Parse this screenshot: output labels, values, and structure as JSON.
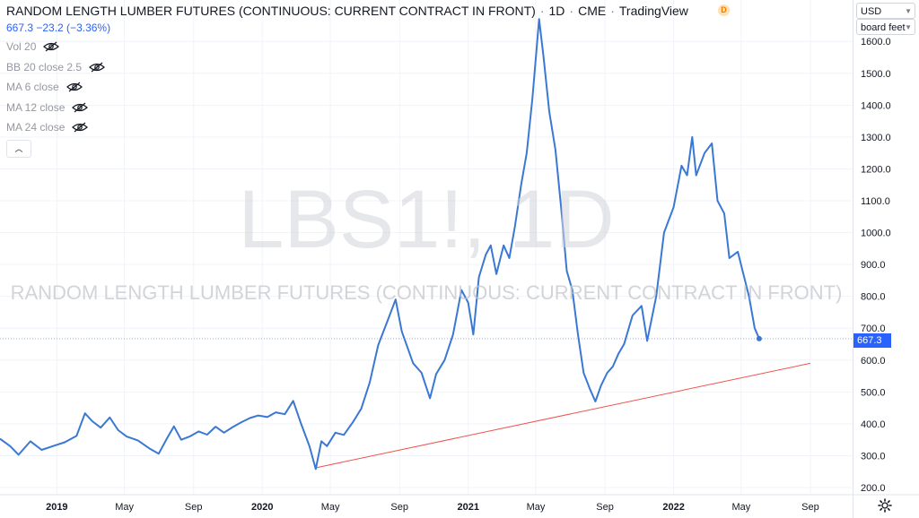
{
  "header": {
    "title": "RANDOM LENGTH LUMBER FUTURES (CONTINUOUS: CURRENT CONTRACT IN FRONT)",
    "interval": "1D",
    "exchange": "CME",
    "source": "TradingView",
    "badge": "D"
  },
  "price_line": "667.3 −23.2 (−3.36%)",
  "indicators": [
    {
      "label": "Vol 20",
      "icon": "eye-off-icon"
    },
    {
      "label": "BB 20 close 2.5",
      "icon": "eye-off-icon"
    },
    {
      "label": "MA 6 close",
      "icon": "eye-off-icon"
    },
    {
      "label": "MA 12 close",
      "icon": "eye-off-icon"
    },
    {
      "label": "MA 24 close",
      "icon": "eye-off-icon"
    }
  ],
  "collapse_icon": "chevron-up-icon",
  "watermark": {
    "symbol": "LBS1!, 1D",
    "description": "RANDOM LENGTH LUMBER FUTURES (CONTINUOUS: CURRENT CONTRACT IN FRONT)"
  },
  "axis_controls": {
    "currency": "USD",
    "unit": "board feet"
  },
  "current_price_label": "667.3",
  "settings_icon": "gear-icon",
  "colors": {
    "price_line": "#3a78d4",
    "trend_line": "#ef5350",
    "accent": "#2962ff",
    "grid": "#f0f3fa"
  },
  "chart_data": {
    "type": "line",
    "symbol": "LBS1!",
    "ylim": [
      200,
      1700
    ],
    "yticks": [
      200,
      300,
      400,
      500,
      600,
      700,
      800,
      900,
      1000,
      1100,
      1200,
      1300,
      1400,
      1500,
      1600
    ],
    "ytick_labels": [
      "200.0",
      "300.0",
      "400.0",
      "500.0",
      "600.0",
      "700.0",
      "800.0",
      "900.0",
      "1000.0",
      "1100.0",
      "1200.0",
      "1300.0",
      "1400.0",
      "1500.0",
      "1600.0"
    ],
    "xlim": [
      "2018-09-22",
      "2022-11-15"
    ],
    "xticks": [
      {
        "date": "2019-01-01",
        "label": "2019",
        "bold": true
      },
      {
        "date": "2019-05-01",
        "label": "May",
        "bold": false
      },
      {
        "date": "2019-09-01",
        "label": "Sep",
        "bold": false
      },
      {
        "date": "2020-01-01",
        "label": "2020",
        "bold": true
      },
      {
        "date": "2020-05-01",
        "label": "May",
        "bold": false
      },
      {
        "date": "2020-09-01",
        "label": "Sep",
        "bold": false
      },
      {
        "date": "2021-01-01",
        "label": "2021",
        "bold": true
      },
      {
        "date": "2021-05-01",
        "label": "May",
        "bold": false
      },
      {
        "date": "2021-09-01",
        "label": "Sep",
        "bold": false
      },
      {
        "date": "2022-01-01",
        "label": "2022",
        "bold": true
      },
      {
        "date": "2022-05-01",
        "label": "May",
        "bold": false
      },
      {
        "date": "2022-09-01",
        "label": "Sep",
        "bold": false
      }
    ],
    "current_price": 667.3,
    "series": [
      {
        "points": [
          [
            "2018-09-22",
            353
          ],
          [
            "2018-10-10",
            330
          ],
          [
            "2018-10-25",
            303
          ],
          [
            "2018-11-15",
            345
          ],
          [
            "2018-12-05",
            318
          ],
          [
            "2018-12-25",
            330
          ],
          [
            "2019-01-15",
            342
          ],
          [
            "2019-02-05",
            362
          ],
          [
            "2019-02-20",
            433
          ],
          [
            "2019-03-05",
            408
          ],
          [
            "2019-03-20",
            388
          ],
          [
            "2019-04-05",
            420
          ],
          [
            "2019-04-20",
            380
          ],
          [
            "2019-05-05",
            360
          ],
          [
            "2019-05-25",
            348
          ],
          [
            "2019-06-15",
            322
          ],
          [
            "2019-07-01",
            306
          ],
          [
            "2019-07-15",
            352
          ],
          [
            "2019-07-28",
            392
          ],
          [
            "2019-08-10",
            350
          ],
          [
            "2019-08-25",
            360
          ],
          [
            "2019-09-10",
            376
          ],
          [
            "2019-09-25",
            366
          ],
          [
            "2019-10-10",
            391
          ],
          [
            "2019-10-25",
            372
          ],
          [
            "2019-11-10",
            390
          ],
          [
            "2019-11-25",
            405
          ],
          [
            "2019-12-10",
            418
          ],
          [
            "2019-12-25",
            426
          ],
          [
            "2020-01-10",
            421
          ],
          [
            "2020-01-25",
            436
          ],
          [
            "2020-02-10",
            430
          ],
          [
            "2020-02-25",
            472
          ],
          [
            "2020-03-10",
            400
          ],
          [
            "2020-03-25",
            329
          ],
          [
            "2020-04-05",
            258
          ],
          [
            "2020-04-15",
            345
          ],
          [
            "2020-04-25",
            330
          ],
          [
            "2020-05-10",
            372
          ],
          [
            "2020-05-25",
            365
          ],
          [
            "2020-06-10",
            405
          ],
          [
            "2020-06-25",
            448
          ],
          [
            "2020-07-10",
            530
          ],
          [
            "2020-07-25",
            647
          ],
          [
            "2020-08-10",
            720
          ],
          [
            "2020-08-25",
            790
          ],
          [
            "2020-09-05",
            690
          ],
          [
            "2020-09-15",
            640
          ],
          [
            "2020-09-25",
            590
          ],
          [
            "2020-10-10",
            560
          ],
          [
            "2020-10-25",
            480
          ],
          [
            "2020-11-05",
            556
          ],
          [
            "2020-11-20",
            600
          ],
          [
            "2020-12-05",
            680
          ],
          [
            "2020-12-20",
            820
          ],
          [
            "2021-01-01",
            780
          ],
          [
            "2021-01-10",
            680
          ],
          [
            "2021-01-20",
            860
          ],
          [
            "2021-02-01",
            930
          ],
          [
            "2021-02-10",
            960
          ],
          [
            "2021-02-20",
            870
          ],
          [
            "2021-03-05",
            960
          ],
          [
            "2021-03-15",
            920
          ],
          [
            "2021-03-25",
            1020
          ],
          [
            "2021-04-05",
            1150
          ],
          [
            "2021-04-15",
            1250
          ],
          [
            "2021-04-25",
            1420
          ],
          [
            "2021-05-07",
            1670
          ],
          [
            "2021-05-15",
            1550
          ],
          [
            "2021-05-25",
            1380
          ],
          [
            "2021-06-05",
            1260
          ],
          [
            "2021-06-15",
            1080
          ],
          [
            "2021-06-25",
            880
          ],
          [
            "2021-07-05",
            820
          ],
          [
            "2021-07-15",
            680
          ],
          [
            "2021-07-25",
            560
          ],
          [
            "2021-08-05",
            510
          ],
          [
            "2021-08-15",
            470
          ],
          [
            "2021-08-25",
            520
          ],
          [
            "2021-09-05",
            560
          ],
          [
            "2021-09-15",
            580
          ],
          [
            "2021-09-25",
            620
          ],
          [
            "2021-10-05",
            650
          ],
          [
            "2021-10-20",
            740
          ],
          [
            "2021-11-05",
            770
          ],
          [
            "2021-11-15",
            660
          ],
          [
            "2021-12-01",
            800
          ],
          [
            "2021-12-15",
            1000
          ],
          [
            "2022-01-01",
            1080
          ],
          [
            "2022-01-15",
            1210
          ],
          [
            "2022-01-25",
            1180
          ],
          [
            "2022-02-03",
            1300
          ],
          [
            "2022-02-10",
            1180
          ],
          [
            "2022-02-25",
            1250
          ],
          [
            "2022-03-10",
            1280
          ],
          [
            "2022-03-20",
            1100
          ],
          [
            "2022-04-01",
            1060
          ],
          [
            "2022-04-10",
            920
          ],
          [
            "2022-04-25",
            940
          ],
          [
            "2022-05-05",
            870
          ],
          [
            "2022-05-15",
            800
          ],
          [
            "2022-05-25",
            700
          ],
          [
            "2022-06-02",
            667.3
          ]
        ]
      }
    ],
    "trendline": {
      "from": [
        "2020-04-05",
        262
      ],
      "to": [
        "2022-09-01",
        590
      ]
    }
  }
}
